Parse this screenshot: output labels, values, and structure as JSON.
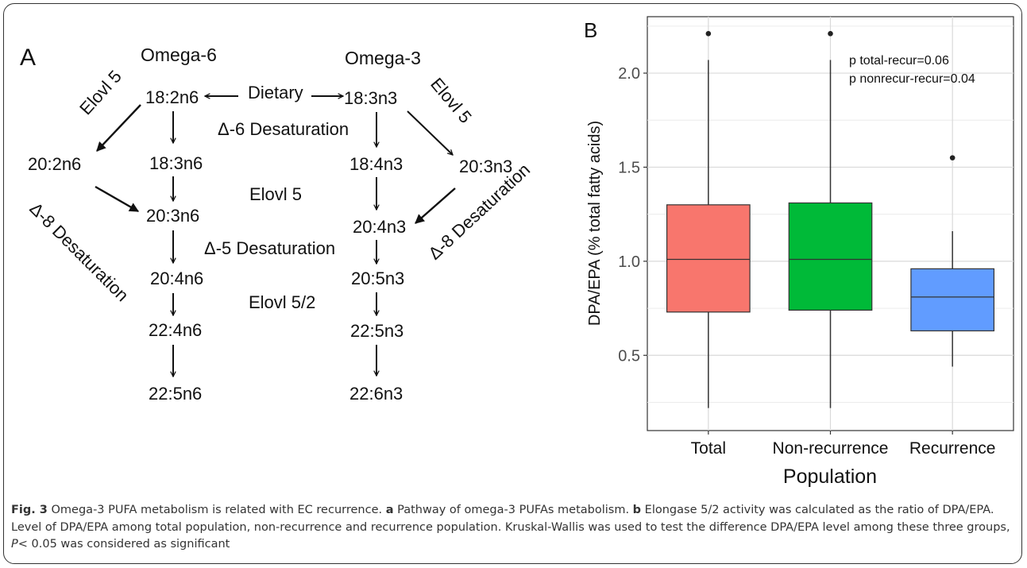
{
  "panel_a": {
    "label": "A",
    "omega6_heading": "Omega-6",
    "omega3_heading": "Omega-3",
    "dietary": "Dietary",
    "d6": "Δ-6 Desaturation",
    "elovl5_mid": "Elovl 5",
    "d5": "Δ-5 Desaturation",
    "elovl52": "Elovl 5/2",
    "elovl5_left": "Elovl 5",
    "elovl5_right": "Elovl 5",
    "d8_left": "Δ-8 Desaturation",
    "d8_right": "Δ-8 Desaturation",
    "omega6": [
      "18:2n6",
      "18:3n6",
      "20:3n6",
      "20:4n6",
      "22:4n6",
      "22:5n6"
    ],
    "omega6_side": "20:2n6",
    "omega3": [
      "18:3n3",
      "18:4n3",
      "20:4n3",
      "20:5n3",
      "22:5n3",
      "22:6n3"
    ],
    "omega3_side": "20:3n3"
  },
  "chart_data": {
    "type": "box",
    "panel_label": "B",
    "xlabel": "Population",
    "ylabel": "DPA/EPA (% total fatty acids)",
    "categories": [
      "Total",
      "Non-recurrence",
      "Recurrence"
    ],
    "colors": [
      "#F8766D",
      "#00BA38",
      "#619CFF"
    ],
    "ylim": [
      0.1,
      2.3
    ],
    "yticks": [
      "0.5",
      "1.0",
      "1.5",
      "2.0"
    ],
    "boxes": [
      {
        "whisker_low": 0.22,
        "q1": 0.73,
        "median": 1.01,
        "q3": 1.3,
        "whisker_high": 2.07,
        "outliers": [
          2.21
        ]
      },
      {
        "whisker_low": 0.22,
        "q1": 0.74,
        "median": 1.01,
        "q3": 1.31,
        "whisker_high": 2.07,
        "outliers": [
          2.21
        ]
      },
      {
        "whisker_low": 0.44,
        "q1": 0.63,
        "median": 0.81,
        "q3": 0.96,
        "whisker_high": 1.16,
        "outliers": [
          1.55
        ]
      }
    ],
    "annotations": [
      "p total-recur=0.06",
      "p nonrecur-recur=0.04"
    ],
    "grid": true
  },
  "caption": {
    "fig": "Fig. 3",
    "title": "Omega-3 PUFA metabolism is related with EC recurrence.",
    "a_label": "a",
    "a_text": "Pathway of omega-3 PUFAs metabolism.",
    "b_label": "b",
    "b_text": "Elongase 5/2 activity was calculated as the ratio of DPA/EPA. Level of DPA/EPA among total population, non-recurrence and recurrence population. Kruskal-Wallis was used to test the difference DPA/EPA level among these three groups,",
    "p_symbol": "P",
    "p_text": "< 0.05 was considered as significant"
  }
}
